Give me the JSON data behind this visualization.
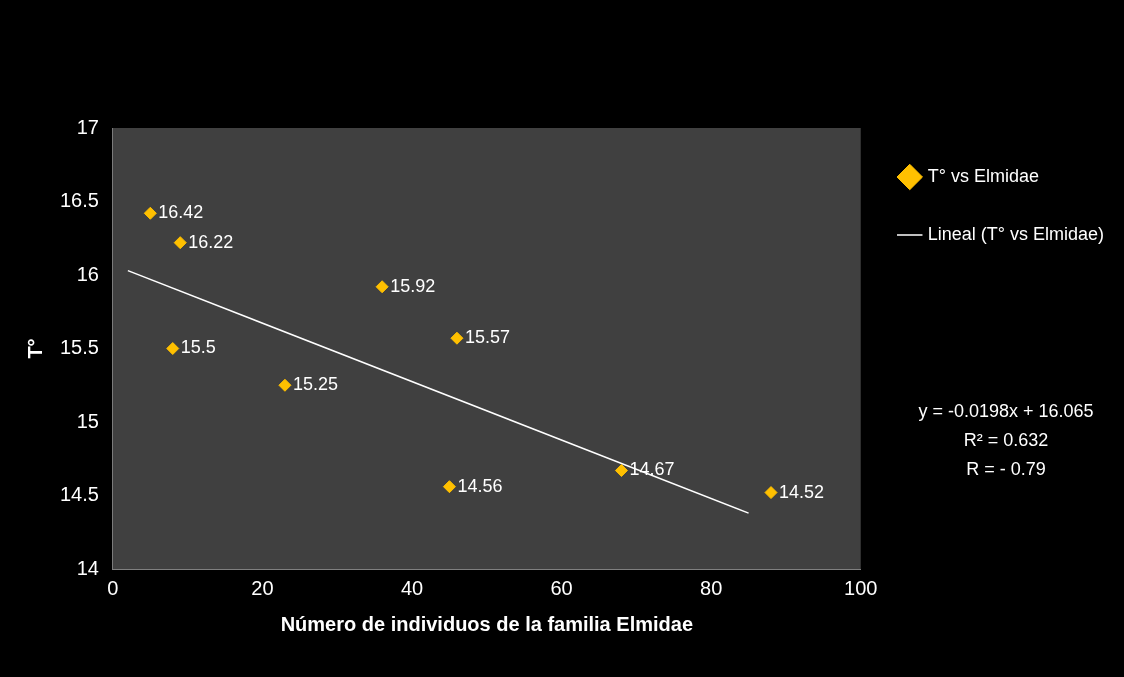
{
  "chart_data": {
    "type": "scatter",
    "xlabel": "Número de individuos de la familia Elmidae",
    "ylabel": "T°",
    "series": [
      {
        "name": "T° vs Elmidae",
        "color": "#ffc000",
        "marker": "diamond",
        "x": [
          5,
          9,
          8,
          23,
          36,
          46,
          45,
          68,
          88
        ],
        "values": [
          16.42,
          16.22,
          15.5,
          15.25,
          15.92,
          15.57,
          14.56,
          14.67,
          14.52
        ],
        "value_labels": [
          "16.42",
          "16.22",
          "15.5",
          "15.25",
          "15.92",
          "15.57",
          "14.56",
          "14.67",
          "14.52"
        ]
      },
      {
        "name": "Lineal (T° vs Elmidae)",
        "type": "line",
        "marker": "none",
        "color": "#ffffff",
        "x": [
          2,
          85
        ],
        "values": [
          16.03,
          14.38
        ]
      }
    ],
    "xlim": [
      0,
      100
    ],
    "xticks": [
      0,
      20,
      40,
      60,
      80,
      100
    ],
    "ylim": [
      14,
      17
    ],
    "yticks": [
      14,
      14.5,
      15,
      15.5,
      16,
      16.5,
      17
    ],
    "grid": false,
    "legend": "right",
    "annotations": [
      "y = -0.0198x + 16.065",
      "R² = 0.632",
      "R = - 0.79"
    ]
  }
}
